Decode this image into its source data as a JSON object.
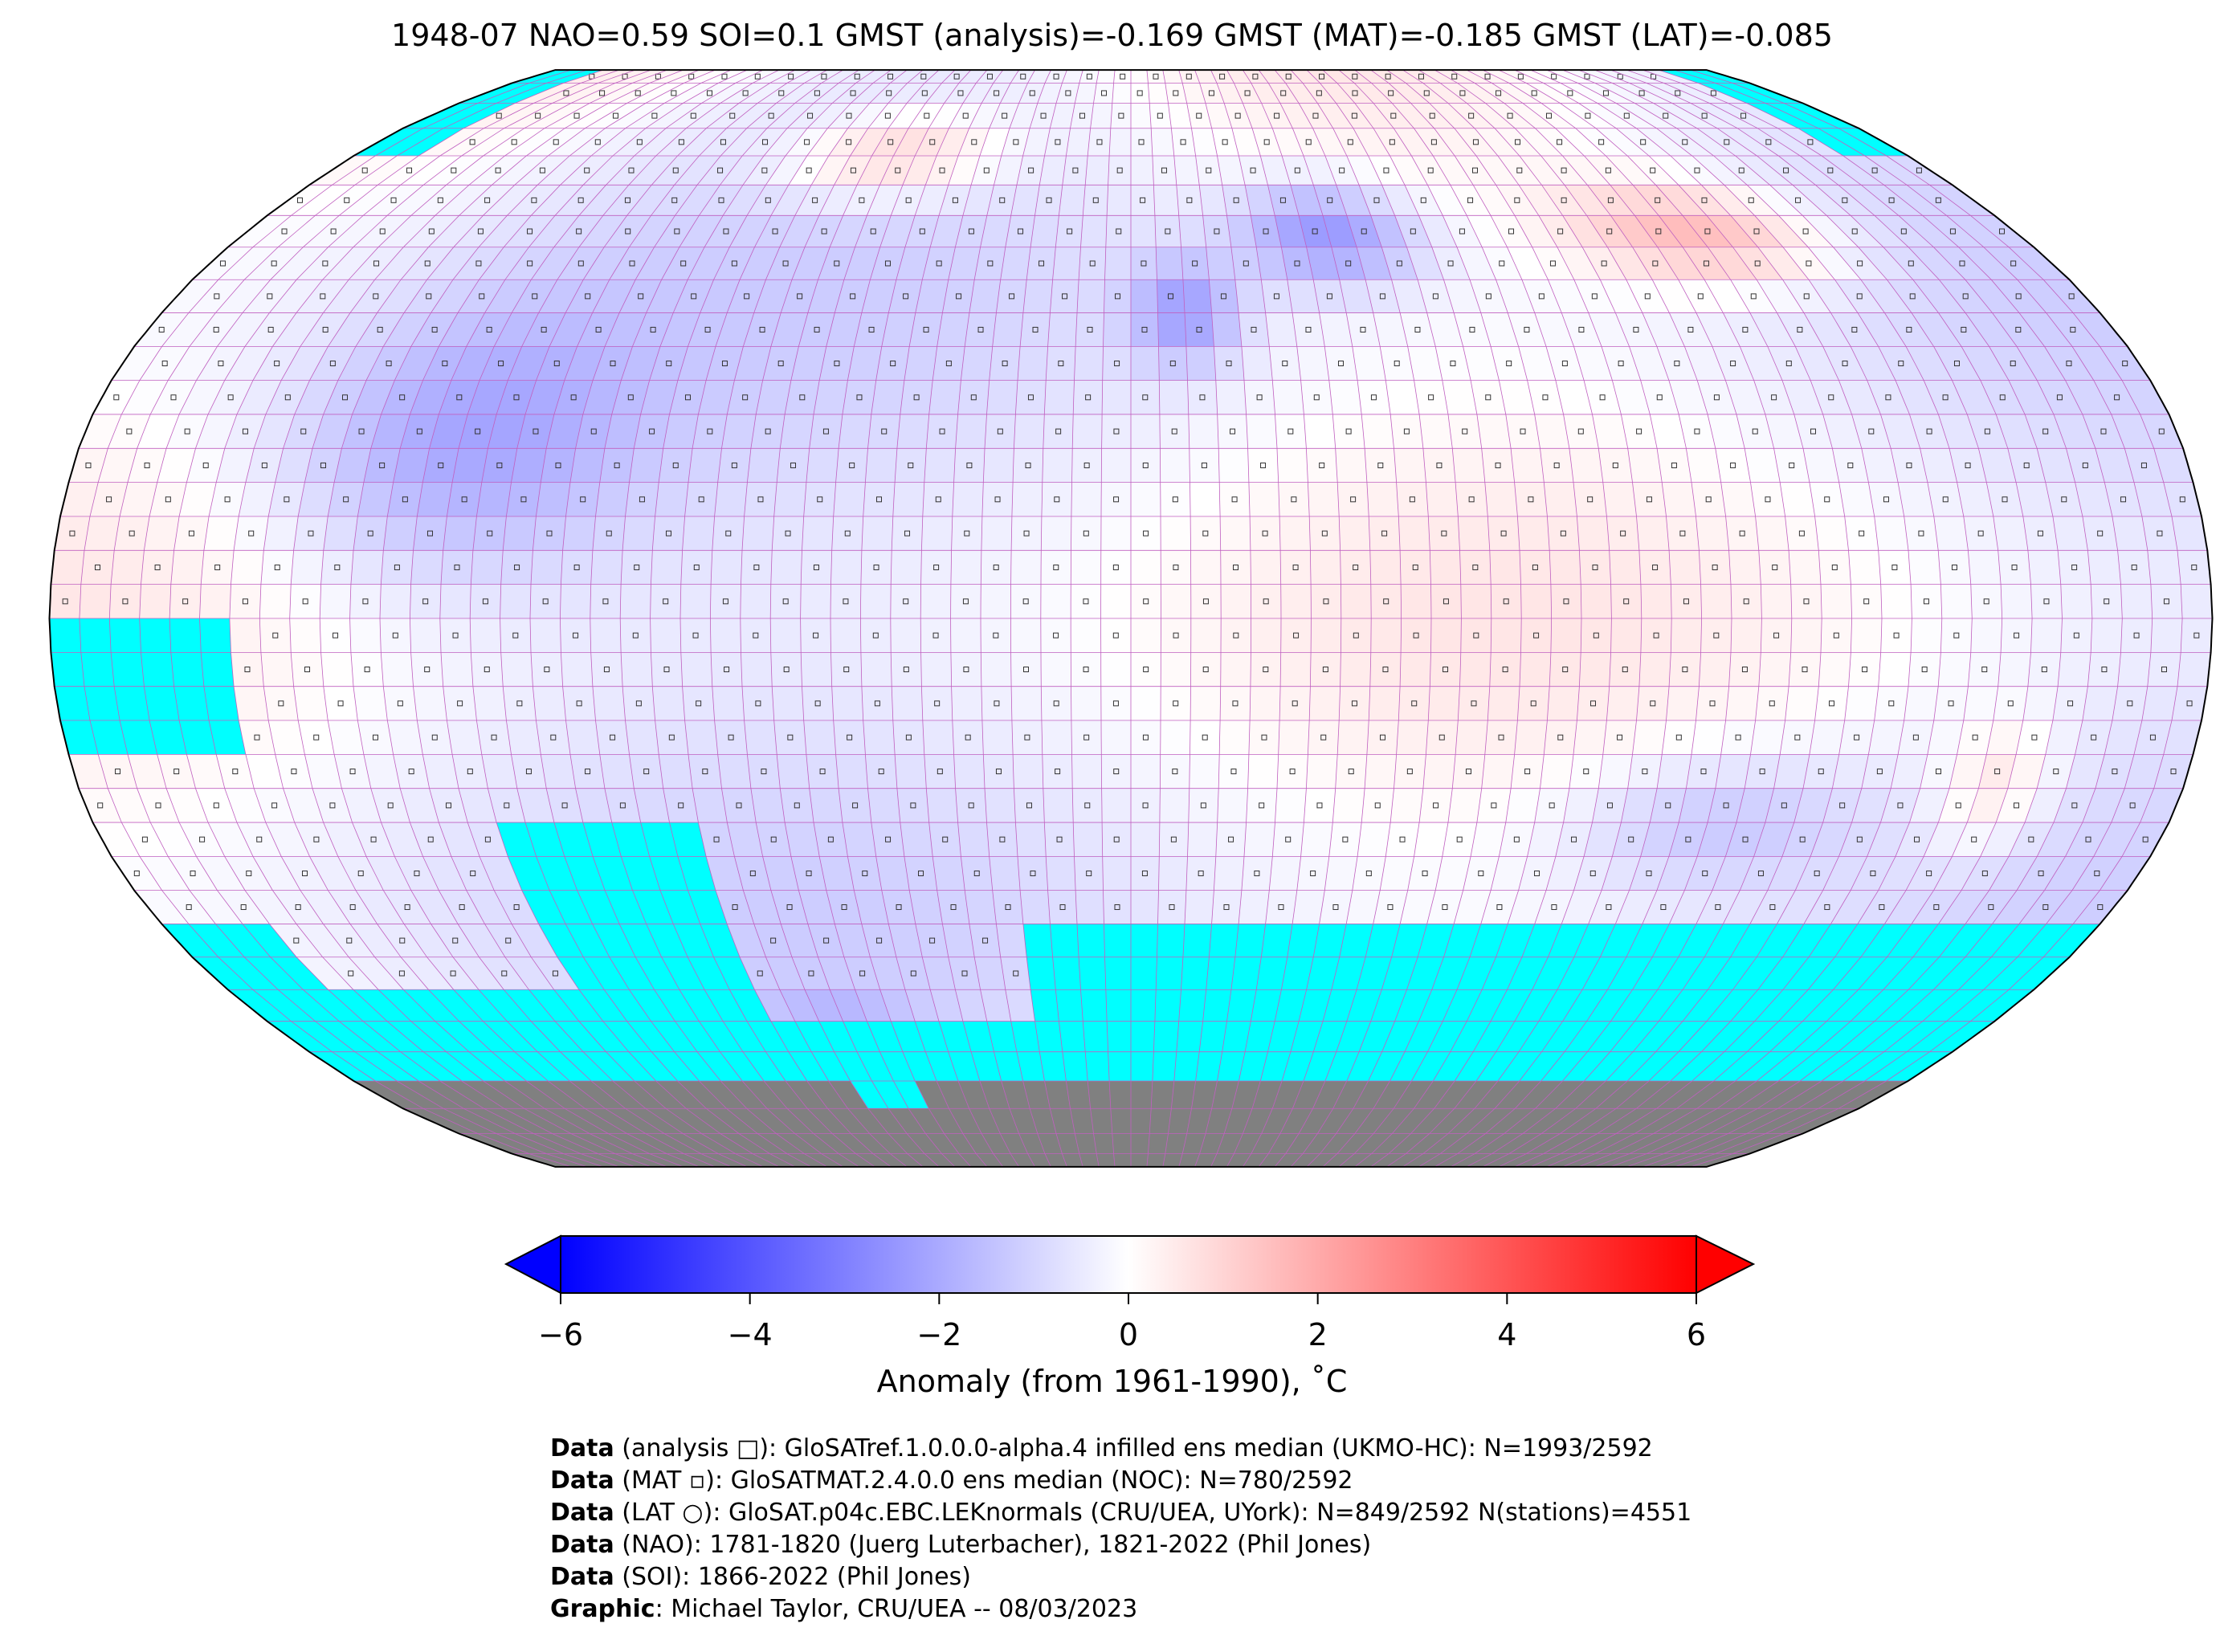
{
  "title": "1948-07 NAO=0.59 SOI=0.1 GMST (analysis)=-0.169 GMST (MAT)=-0.185 GMST (LAT)=-0.085",
  "colorbar": {
    "label": "Anomaly (from 1961-1990), ˚C",
    "ticks": [
      "−6",
      "−4",
      "−2",
      "0",
      "2",
      "4",
      "6"
    ],
    "range": [
      -6,
      6
    ],
    "cmap": [
      "#0000ff",
      "#ffffff",
      "#ff0000"
    ],
    "missing_color": "#00ffff",
    "land_mask_color": "#808080"
  },
  "footer": [
    {
      "bold": "Data",
      "text": " (analysis □): GloSATref.1.0.0.0-alpha.4 infilled ens median (UKMO-HC): N=1993/2592"
    },
    {
      "bold": "Data",
      "text": " (MAT ▫): GloSATMAT.2.4.0.0 ens median (NOC): N=780/2592"
    },
    {
      "bold": "Data",
      "text": " (LAT ○): GloSAT.p04c.EBC.LEKnormals (CRU/UEA, UYork): N=849/2592 N(stations)=4551"
    },
    {
      "bold": "Data",
      "text": " (NAO): 1781-1820 (Juerg Luterbacher), 1821-2022 (Phil Jones)"
    },
    {
      "bold": "Data",
      "text": " (SOI): 1866-2022 (Phil Jones)"
    },
    {
      "bold": "Graphic",
      "text": ": Michael Taylor, CRU/UEA -- 08/03/2023"
    }
  ]
}
